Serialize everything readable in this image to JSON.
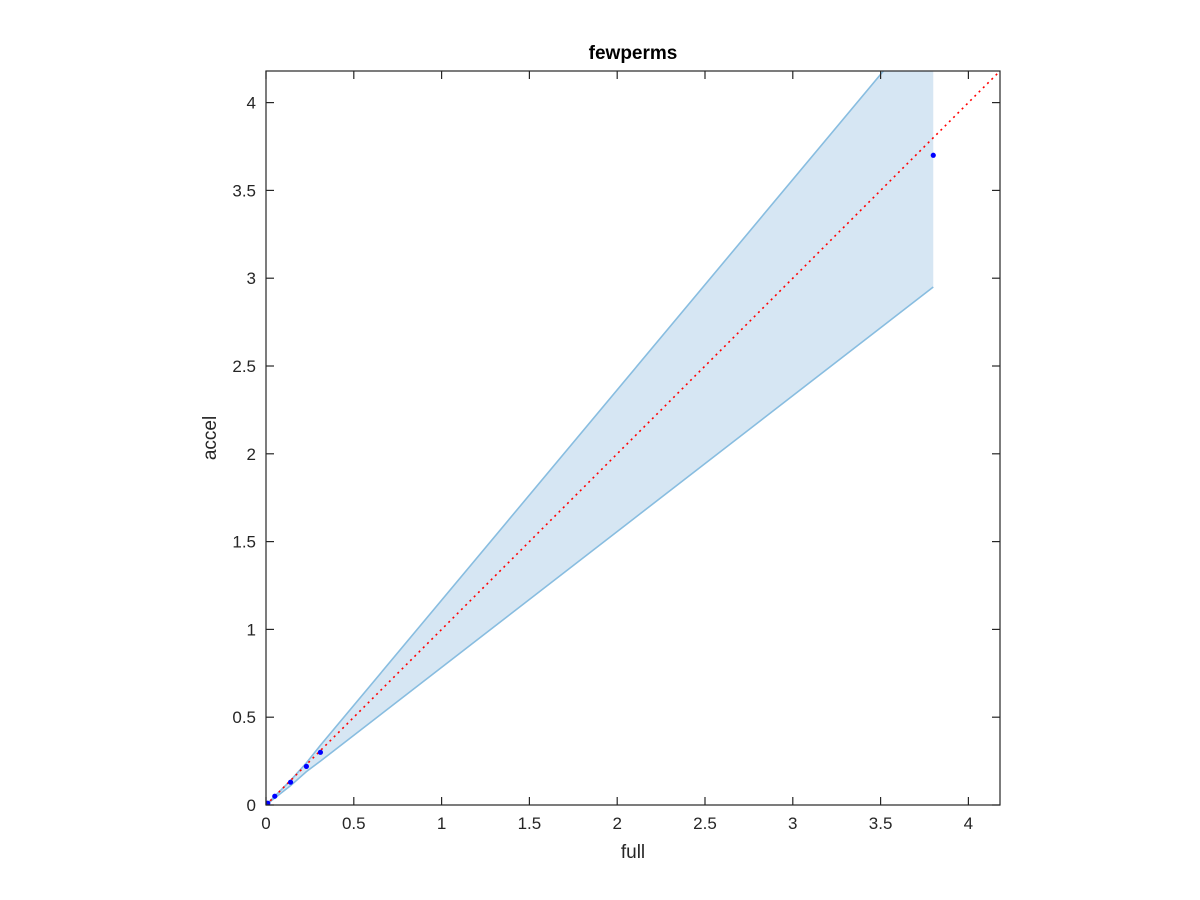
{
  "chart_data": {
    "type": "line",
    "title": "fewperms",
    "xlabel": "full",
    "ylabel": "accel",
    "xlim": [
      0,
      4.18
    ],
    "ylim": [
      0,
      4.18
    ],
    "grid": false,
    "box": true,
    "xticks": [
      0,
      0.5,
      1,
      1.5,
      2,
      2.5,
      3,
      3.5,
      4
    ],
    "xtick_labels": [
      "0",
      "0.5",
      "1",
      "1.5",
      "2",
      "2.5",
      "3",
      "3.5",
      "4"
    ],
    "yticks": [
      0,
      0.5,
      1,
      1.5,
      2,
      2.5,
      3,
      3.5,
      4
    ],
    "ytick_labels": [
      "0",
      "0.5",
      "1",
      "1.5",
      "2",
      "2.5",
      "3",
      "3.5",
      "4"
    ],
    "band": {
      "x": [
        0,
        0.05,
        0.14,
        0.23,
        0.31,
        3.8
      ],
      "upper": [
        0,
        0.05,
        0.14,
        0.24,
        0.34,
        4.52
      ],
      "lower": [
        0,
        0.04,
        0.11,
        0.19,
        0.25,
        2.95
      ],
      "fill_color": "#d6e6f3",
      "line_color": "#88bde0"
    },
    "points": {
      "x": [
        0.0,
        0.01,
        0.05,
        0.14,
        0.23,
        0.31,
        3.8
      ],
      "y": [
        0.0,
        0.01,
        0.05,
        0.13,
        0.22,
        0.3,
        3.7
      ],
      "color": "#0000ff"
    },
    "reference_line": {
      "x": [
        0,
        4.18
      ],
      "y": [
        0,
        4.18
      ],
      "style": "dotted",
      "color": "#ff0000"
    }
  }
}
